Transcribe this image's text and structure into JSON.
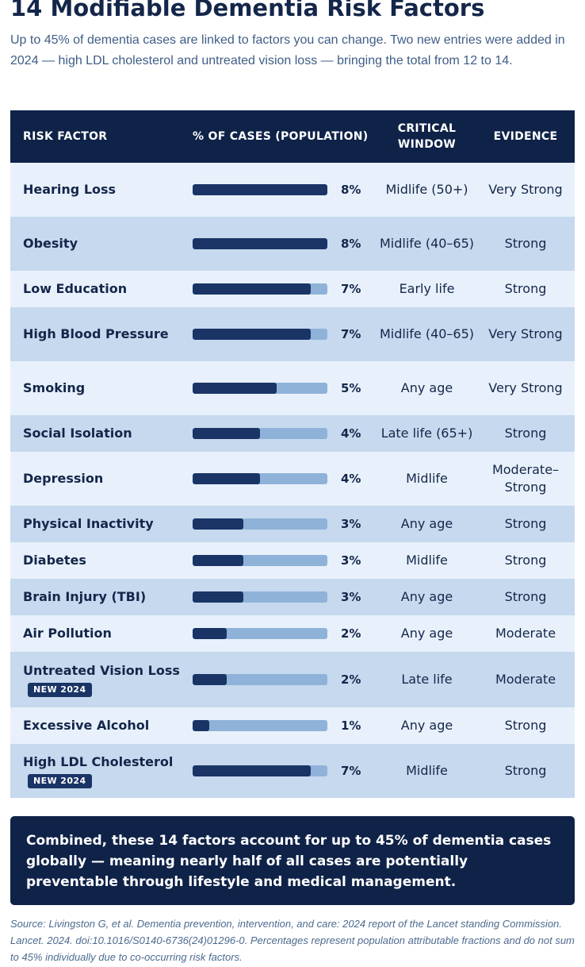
{
  "title": "14 Modifiable Dementia Risk Factors",
  "subtitle": "Up to 45% of dementia cases are linked to factors you can change. Two new entries were added in 2024 — high LDL cholesterol and untreated vision loss — bringing the total from 12 to 14.",
  "table": {
    "headers": {
      "risk_factor": "RISK FACTOR",
      "pct_cases": "% OF CASES (POPULATION)",
      "critical_window": "CRITICAL WINDOW",
      "evidence": "EVIDENCE"
    },
    "bar_max_pct": 8,
    "rows": [
      {
        "factor": "Hearing Loss",
        "pct": 8,
        "pct_label": "8%",
        "window": "Midlife (50+)",
        "evidence": "Very Strong",
        "badge": ""
      },
      {
        "factor": "Obesity",
        "pct": 8,
        "pct_label": "8%",
        "window": "Midlife (40–65)",
        "evidence": "Strong",
        "badge": ""
      },
      {
        "factor": "Low Education",
        "pct": 7,
        "pct_label": "7%",
        "window": "Early life",
        "evidence": "Strong",
        "badge": ""
      },
      {
        "factor": "High Blood Pressure",
        "pct": 7,
        "pct_label": "7%",
        "window": "Midlife (40–65)",
        "evidence": "Very Strong",
        "badge": ""
      },
      {
        "factor": "Smoking",
        "pct": 5,
        "pct_label": "5%",
        "window": "Any age",
        "evidence": "Very Strong",
        "badge": ""
      },
      {
        "factor": "Social Isolation",
        "pct": 4,
        "pct_label": "4%",
        "window": "Late life (65+)",
        "evidence": "Strong",
        "badge": ""
      },
      {
        "factor": "Depression",
        "pct": 4,
        "pct_label": "4%",
        "window": "Midlife",
        "evidence": "Moderate–Strong",
        "badge": ""
      },
      {
        "factor": "Physical Inactivity",
        "pct": 3,
        "pct_label": "3%",
        "window": "Any age",
        "evidence": "Strong",
        "badge": ""
      },
      {
        "factor": "Diabetes",
        "pct": 3,
        "pct_label": "3%",
        "window": "Midlife",
        "evidence": "Strong",
        "badge": ""
      },
      {
        "factor": "Brain Injury (TBI)",
        "pct": 3,
        "pct_label": "3%",
        "window": "Any age",
        "evidence": "Strong",
        "badge": ""
      },
      {
        "factor": "Air Pollution",
        "pct": 2,
        "pct_label": "2%",
        "window": "Any age",
        "evidence": "Moderate",
        "badge": ""
      },
      {
        "factor": "Untreated Vision Loss",
        "pct": 2,
        "pct_label": "2%",
        "window": "Late life",
        "evidence": "Moderate",
        "badge": "NEW 2024"
      },
      {
        "factor": "Excessive Alcohol",
        "pct": 1,
        "pct_label": "1%",
        "window": "Any age",
        "evidence": "Strong",
        "badge": ""
      },
      {
        "factor": "High LDL Cholesterol",
        "pct": 7,
        "pct_label": "7%",
        "window": "Midlife",
        "evidence": "Strong",
        "badge": "NEW 2024"
      }
    ]
  },
  "callout": "Combined, these 14 factors account for up to 45% of dementia cases globally — meaning nearly half of all cases are potentially preventable through lifestyle and medical management.",
  "source": "Source: Livingston G, et al. Dementia prevention, intervention, and care: 2024 report of the Lancet standing Commission. Lancet. 2024. doi:10.1016/S0140-6736(24)01296-0. Percentages represent population attributable fractions and do not sum to 45% individually due to co-occurring risk factors.",
  "colors": {
    "header_bg": "#0f2248",
    "bar_fill": "#1a3466",
    "bar_track": "#8fb2d9",
    "row_light": "#e8f1fb",
    "row_dark": "#c6d9ee"
  }
}
